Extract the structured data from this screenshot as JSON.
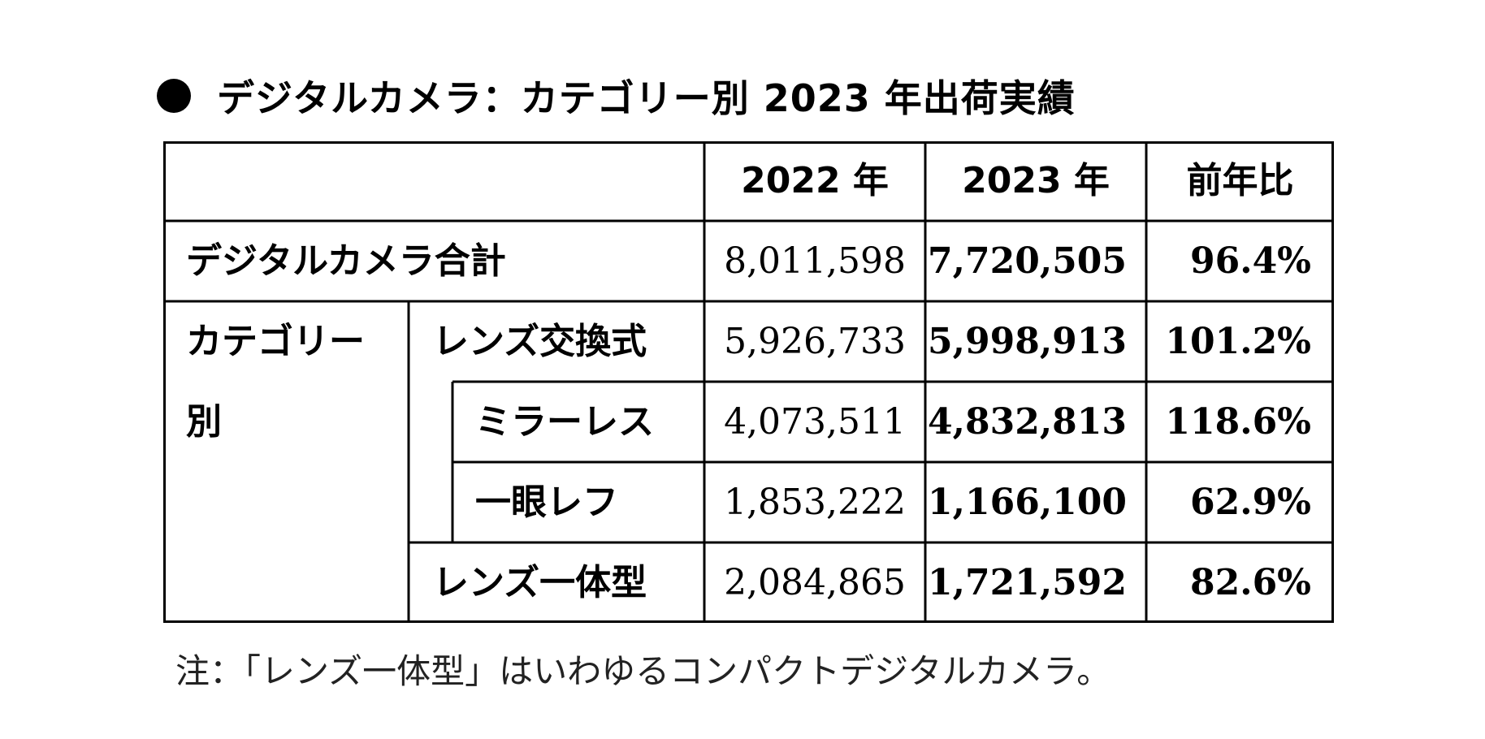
{
  "chart_data": {
    "type": "table",
    "title": "デジタルカメラ：カテゴリー別 2023 年出荷実績",
    "columns": [
      "2022 年",
      "2023 年",
      "前年比"
    ],
    "rows": [
      {
        "label": "デジタルカメラ合計",
        "values": [
          "8,011,598",
          "7,720,505",
          "96.4%"
        ]
      },
      {
        "label": "レンズ交換式",
        "values": [
          "5,926,733",
          "5,998,913",
          "101.2%"
        ]
      },
      {
        "label": "ミラーレス",
        "values": [
          "4,073,511",
          "4,832,813",
          "118.6%"
        ]
      },
      {
        "label": "一眼レフ",
        "values": [
          "1,853,222",
          "1,166,100",
          "62.9%"
        ]
      },
      {
        "label": "レンズ一体型",
        "values": [
          "2,084,865",
          "1,721,592",
          "82.6%"
        ]
      }
    ],
    "category_label_line1": "カテゴリー",
    "category_label_line2": "別",
    "note": "注：「レンズ一体型」はいわゆるコンパクトデジタルカメラ。"
  }
}
